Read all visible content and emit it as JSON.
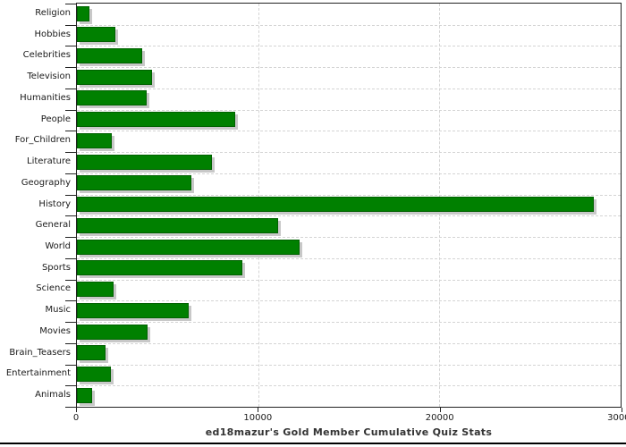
{
  "chart_data": {
    "type": "bar",
    "orientation": "horizontal",
    "title": "ed18mazur's Gold Member Cumulative Quiz Stats",
    "categories": [
      "Religion",
      "Hobbies",
      "Celebrities",
      "Television",
      "Humanities",
      "People",
      "For_Children",
      "Literature",
      "Geography",
      "History",
      "General",
      "World",
      "Sports",
      "Science",
      "Music",
      "Movies",
      "Brain_Teasers",
      "Entertainment",
      "Animals"
    ],
    "values": [
      700,
      2100,
      3600,
      4150,
      3830,
      8750,
      1920,
      7450,
      6320,
      28500,
      11100,
      12300,
      9150,
      2030,
      6160,
      3890,
      1590,
      1860,
      820
    ],
    "xlabel": "",
    "ylabel": "",
    "xlim": [
      0,
      30000
    ],
    "x_ticks": [
      0,
      10000,
      20000,
      30000
    ],
    "x_tick_labels": [
      "0",
      "10000",
      "20000",
      "30000"
    ],
    "grid": "on",
    "gridline_style": "dashed",
    "legend": "none",
    "colors": {
      "bar_fill": "#008000",
      "bar_border": "#006100",
      "bar_shadow": "#c8c8c8",
      "gridline": "#d4d4d4",
      "axis": "#222222",
      "label_text": "#1a1a1a",
      "title_text": "#333333",
      "background": "#ffffff",
      "bottom_rule": "#000000"
    }
  }
}
